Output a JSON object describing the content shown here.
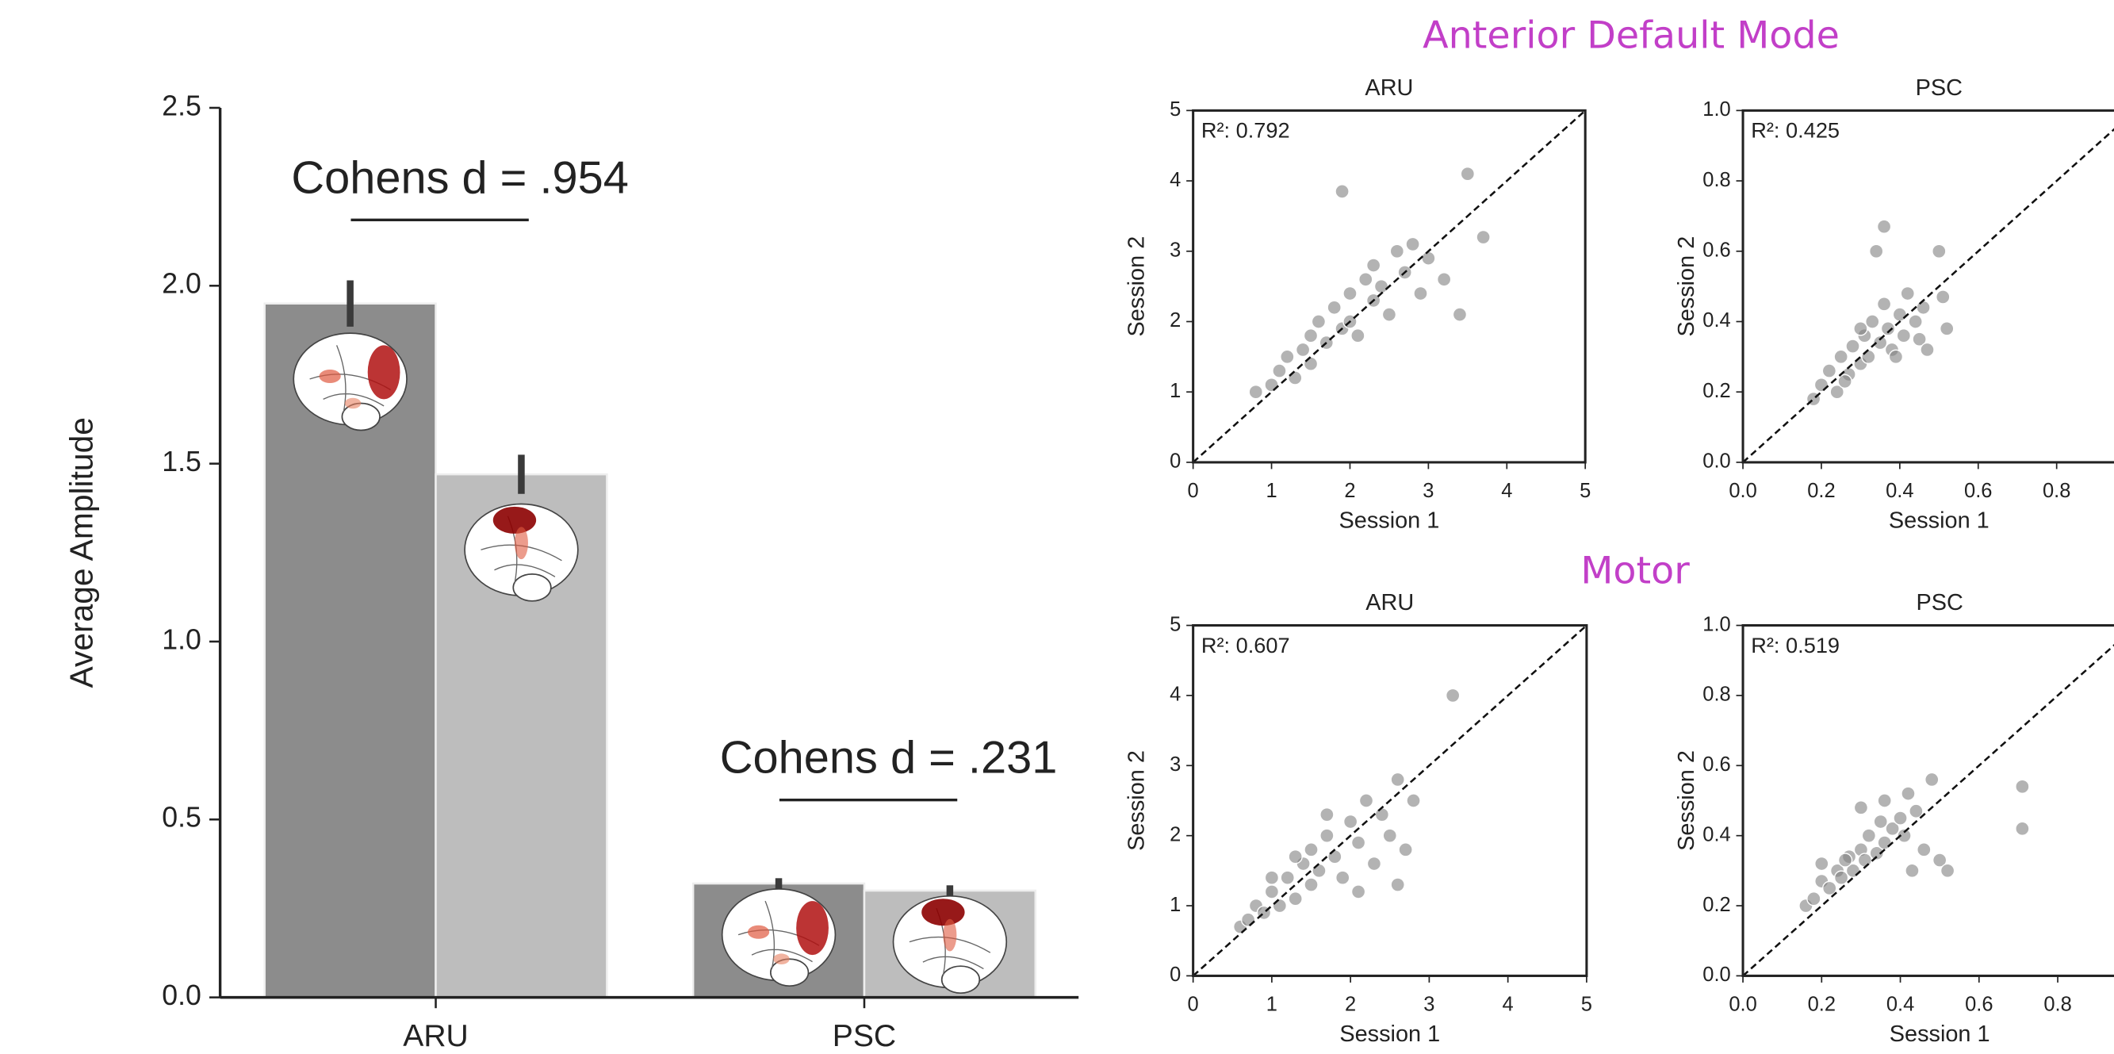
{
  "panel_titles": [
    "Anterior Default Mode",
    "Motor"
  ],
  "chart_data": [
    {
      "type": "bar",
      "ylabel": "Average Amplitude",
      "categories": [
        "ARU",
        "PSC"
      ],
      "series": [
        {
          "color": "#8c8c8c",
          "values": [
            1.95,
            0.32
          ],
          "errors": [
            0.065,
            0.015
          ]
        },
        {
          "color": "#bdbdbd",
          "values": [
            1.47,
            0.3
          ],
          "errors": [
            0.055,
            0.015
          ]
        }
      ],
      "annotations": [
        "Cohens d = .954",
        "Cohens d = .231"
      ],
      "ylim": [
        0,
        2.5
      ],
      "yticks": [
        {
          "value": 0,
          "label": "0.0"
        },
        0.5,
        {
          "value": 1,
          "label": "1.0"
        },
        1.5,
        {
          "value": 2,
          "label": "2.0"
        },
        2.5
      ]
    },
    {
      "type": "scatter",
      "title": "ARU",
      "xlabel": "Session 1",
      "ylabel": "Session 2",
      "annotation": "R²: 0.792",
      "color": "#808080",
      "identity_line": true,
      "x": [
        0.8,
        1.0,
        1.1,
        1.2,
        1.3,
        1.4,
        1.5,
        1.5,
        1.6,
        1.7,
        1.8,
        1.9,
        2.0,
        2.0,
        2.1,
        2.2,
        2.3,
        2.3,
        2.4,
        2.5,
        2.6,
        2.7,
        2.8,
        2.9,
        3.0,
        3.2,
        3.4,
        3.5,
        3.7,
        1.9
      ],
      "values": [
        1.0,
        1.1,
        1.3,
        1.5,
        1.2,
        1.6,
        1.8,
        1.4,
        2.0,
        1.7,
        2.2,
        1.9,
        2.4,
        2.0,
        1.8,
        2.6,
        2.3,
        2.8,
        2.5,
        2.1,
        3.0,
        2.7,
        3.1,
        2.4,
        2.9,
        2.6,
        2.1,
        4.1,
        3.2,
        3.85
      ],
      "xlim": [
        0,
        5
      ],
      "ylim": [
        0,
        5
      ],
      "xticks": [
        0,
        1,
        2,
        3,
        4,
        5
      ],
      "yticks": [
        0,
        1,
        2,
        3,
        4,
        5
      ]
    },
    {
      "type": "scatter",
      "title": "PSC",
      "xlabel": "Session 1",
      "ylabel": "Session 2",
      "annotation": "R²: 0.425",
      "color": "#808080",
      "identity_line": true,
      "x": [
        0.18,
        0.2,
        0.22,
        0.24,
        0.25,
        0.27,
        0.28,
        0.3,
        0.31,
        0.32,
        0.33,
        0.35,
        0.36,
        0.37,
        0.38,
        0.4,
        0.41,
        0.42,
        0.44,
        0.45,
        0.47,
        0.5,
        0.52,
        0.34,
        0.36,
        0.3,
        0.26,
        0.46,
        0.51,
        0.39
      ],
      "values": [
        0.18,
        0.22,
        0.26,
        0.2,
        0.3,
        0.25,
        0.33,
        0.28,
        0.36,
        0.3,
        0.4,
        0.34,
        0.45,
        0.38,
        0.32,
        0.42,
        0.36,
        0.48,
        0.4,
        0.35,
        0.32,
        0.6,
        0.38,
        0.6,
        0.67,
        0.38,
        0.23,
        0.44,
        0.47,
        0.3
      ],
      "xlim": [
        0,
        1
      ],
      "ylim": [
        0,
        1
      ],
      "xticks": [
        {
          "value": 0,
          "label": "0.0"
        },
        0.2,
        0.4,
        0.6,
        0.8
      ],
      "yticks": [
        {
          "value": 0,
          "label": "0.0"
        },
        0.2,
        0.4,
        0.6,
        0.8,
        {
          "value": 1,
          "label": "1.0"
        }
      ]
    },
    {
      "type": "scatter",
      "title": "ARU",
      "xlabel": "Session 1",
      "ylabel": "Session 2",
      "annotation": "R²: 0.607",
      "color": "#808080",
      "identity_line": true,
      "x": [
        0.6,
        0.7,
        0.8,
        0.9,
        1.0,
        1.1,
        1.2,
        1.3,
        1.4,
        1.5,
        1.5,
        1.6,
        1.7,
        1.8,
        1.9,
        2.0,
        2.1,
        2.2,
        2.3,
        2.4,
        2.5,
        2.6,
        2.7,
        2.8,
        3.3,
        1.0,
        1.3,
        1.7,
        2.1,
        2.6
      ],
      "values": [
        0.7,
        0.8,
        1.0,
        0.9,
        1.2,
        1.0,
        1.4,
        1.1,
        1.6,
        1.3,
        1.8,
        1.5,
        2.0,
        1.7,
        1.4,
        2.2,
        1.9,
        2.5,
        1.6,
        2.3,
        2.0,
        2.8,
        1.8,
        2.5,
        4.0,
        1.4,
        1.7,
        2.3,
        1.2,
        1.3
      ],
      "xlim": [
        0,
        5
      ],
      "ylim": [
        0,
        5
      ],
      "xticks": [
        0,
        1,
        2,
        3,
        4,
        5
      ],
      "yticks": [
        0,
        1,
        2,
        3,
        4,
        5
      ]
    },
    {
      "type": "scatter",
      "title": "PSC",
      "xlabel": "Session 1",
      "ylabel": "Session 2",
      "annotation": "R²: 0.519",
      "color": "#808080",
      "identity_line": true,
      "x": [
        0.16,
        0.18,
        0.2,
        0.22,
        0.24,
        0.25,
        0.27,
        0.28,
        0.3,
        0.31,
        0.32,
        0.34,
        0.35,
        0.36,
        0.38,
        0.4,
        0.41,
        0.42,
        0.44,
        0.46,
        0.48,
        0.5,
        0.52,
        0.71,
        0.71,
        0.3,
        0.26,
        0.36,
        0.43,
        0.2
      ],
      "values": [
        0.2,
        0.22,
        0.27,
        0.25,
        0.3,
        0.28,
        0.34,
        0.3,
        0.36,
        0.33,
        0.4,
        0.35,
        0.44,
        0.38,
        0.42,
        0.45,
        0.4,
        0.52,
        0.47,
        0.36,
        0.56,
        0.33,
        0.3,
        0.54,
        0.42,
        0.48,
        0.33,
        0.5,
        0.3,
        0.32
      ],
      "xlim": [
        0,
        1
      ],
      "ylim": [
        0,
        1
      ],
      "xticks": [
        {
          "value": 0,
          "label": "0.0"
        },
        0.2,
        0.4,
        0.6,
        0.8
      ],
      "yticks": [
        {
          "value": 0,
          "label": "0.0"
        },
        0.2,
        0.4,
        0.6,
        0.8,
        {
          "value": 1,
          "label": "1.0"
        }
      ]
    }
  ]
}
